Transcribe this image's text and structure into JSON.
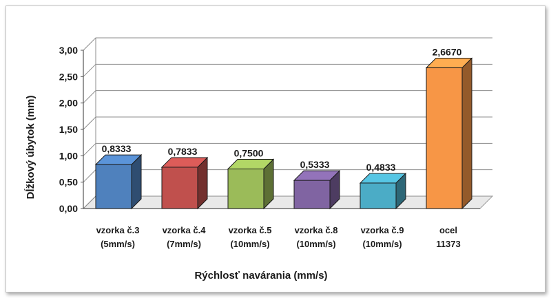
{
  "chart_data": {
    "type": "bar",
    "categories": [
      [
        "vzorka č.3",
        "(5mm/s)"
      ],
      [
        "vzorka č.4",
        "(7mm/s)"
      ],
      [
        "vzorka č.5",
        "(10mm/s)"
      ],
      [
        "vzorka č.8",
        "(10mm/s)"
      ],
      [
        "vzorka č.9",
        "(10mm/s)"
      ],
      [
        "ocel",
        "11373"
      ]
    ],
    "values": [
      0.8333,
      0.7833,
      0.75,
      0.5333,
      0.4833,
      2.667
    ],
    "data_labels": [
      "0,8333",
      "0,7833",
      "0,7500",
      "0,5333",
      "0,4833",
      "2,6670"
    ],
    "xlabel": "Rýchlosť navárania (mm/s)",
    "ylabel": "Dĺžkový úbytok (mm)",
    "ylim": [
      0,
      3
    ],
    "yticks": [
      "0,00",
      "0,50",
      "1,00",
      "1,50",
      "2,00",
      "2,50",
      "3,00"
    ],
    "grid": true,
    "style": "3d-column",
    "colors": [
      "#4f81bd",
      "#c0504d",
      "#9bbb59",
      "#8064a2",
      "#4bacc6",
      "#f79646"
    ]
  }
}
